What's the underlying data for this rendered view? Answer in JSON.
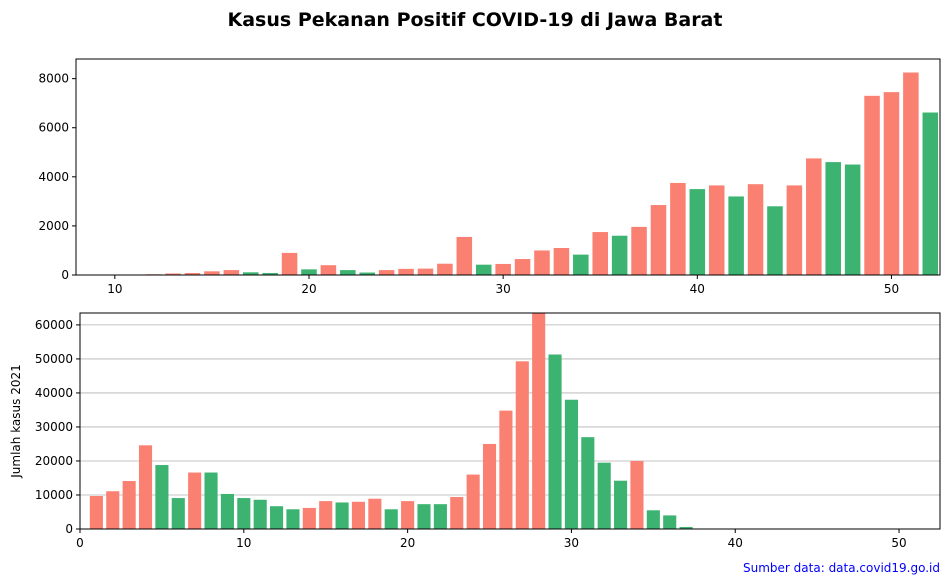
{
  "title": "Kasus Pekanan Positif COVID-19 di Jawa Barat",
  "source": "Sumber data: data.covid19.go.id",
  "colors": {
    "increase": "#fa8072",
    "decrease": "#3cb371",
    "source_text": "#0000ff"
  },
  "chart_data": [
    {
      "type": "bar",
      "xlim": [
        8,
        52.5
      ],
      "ylim": [
        0,
        8800
      ],
      "xticks": [
        "10",
        "20",
        "30",
        "40",
        "50"
      ],
      "yticks": [
        "0",
        "2000",
        "4000",
        "6000",
        "8000"
      ],
      "ylabel": "",
      "grid": false,
      "x": [
        11,
        12,
        13,
        14,
        15,
        16,
        17,
        18,
        19,
        20,
        21,
        22,
        23,
        24,
        25,
        26,
        27,
        28,
        29,
        30,
        31,
        32,
        33,
        34,
        35,
        36,
        37,
        38,
        39,
        40,
        41,
        42,
        43,
        44,
        45,
        46,
        47,
        48,
        49,
        50,
        51,
        52
      ],
      "values": [
        2,
        30,
        60,
        80,
        150,
        200,
        110,
        80,
        900,
        230,
        400,
        200,
        100,
        200,
        250,
        260,
        460,
        1550,
        420,
        450,
        650,
        1000,
        1100,
        830,
        1750,
        1600,
        1960,
        2850,
        3750,
        3500,
        3650,
        3200,
        3700,
        2800,
        3650,
        4750,
        4600,
        4500,
        7300,
        7450,
        8250,
        6620
      ],
      "colors": [
        "increase",
        "increase",
        "increase",
        "increase",
        "increase",
        "increase",
        "decrease",
        "decrease",
        "increase",
        "decrease",
        "increase",
        "decrease",
        "decrease",
        "increase",
        "increase",
        "increase",
        "increase",
        "increase",
        "decrease",
        "increase",
        "increase",
        "increase",
        "increase",
        "decrease",
        "increase",
        "decrease",
        "increase",
        "increase",
        "increase",
        "decrease",
        "increase",
        "decrease",
        "increase",
        "decrease",
        "increase",
        "increase",
        "decrease",
        "decrease",
        "increase",
        "increase",
        "increase",
        "decrease"
      ]
    },
    {
      "type": "bar",
      "xlim": [
        0,
        52.5
      ],
      "ylim": [
        0,
        63500
      ],
      "xticks": [
        "0",
        "10",
        "20",
        "30",
        "40",
        "50"
      ],
      "yticks": [
        "0",
        "10000",
        "20000",
        "30000",
        "40000",
        "50000",
        "60000"
      ],
      "ylabel": "Jumlah kasus 2021",
      "grid": true,
      "x": [
        1,
        2,
        3,
        4,
        5,
        6,
        7,
        8,
        9,
        10,
        11,
        12,
        13,
        14,
        15,
        16,
        17,
        18,
        19,
        20,
        21,
        22,
        23,
        24,
        25,
        26,
        27,
        28,
        29,
        30,
        31,
        32,
        33,
        34,
        35,
        36,
        37
      ],
      "values": [
        9700,
        11100,
        14100,
        24600,
        18800,
        9100,
        16600,
        16600,
        10300,
        9100,
        8600,
        6700,
        5800,
        6200,
        8200,
        7800,
        8000,
        8900,
        5800,
        8200,
        7300,
        7300,
        9400,
        16000,
        25000,
        34800,
        49300,
        64000,
        51300,
        38000,
        27000,
        19500,
        14200,
        20000,
        5500,
        4000,
        600
      ],
      "colors": [
        "increase",
        "increase",
        "increase",
        "increase",
        "decrease",
        "decrease",
        "increase",
        "decrease",
        "decrease",
        "decrease",
        "decrease",
        "decrease",
        "decrease",
        "increase",
        "increase",
        "decrease",
        "increase",
        "increase",
        "decrease",
        "increase",
        "decrease",
        "decrease",
        "increase",
        "increase",
        "increase",
        "increase",
        "increase",
        "increase",
        "decrease",
        "decrease",
        "decrease",
        "decrease",
        "decrease",
        "increase",
        "decrease",
        "decrease",
        "decrease"
      ]
    }
  ]
}
